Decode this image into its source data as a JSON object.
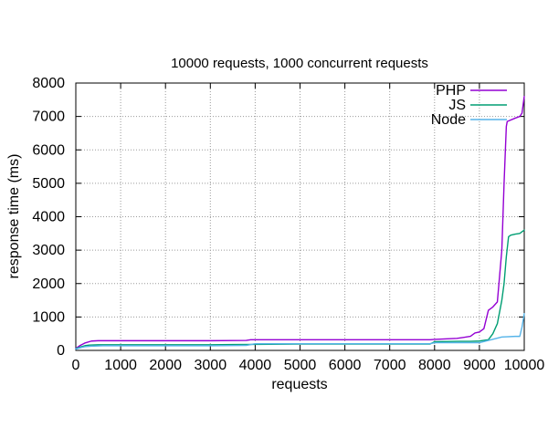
{
  "chart_data": {
    "type": "line",
    "title": "10000 requests, 1000 concurrent requests",
    "xlabel": "requests",
    "ylabel": "response time (ms)",
    "xlim": [
      0,
      10000
    ],
    "ylim": [
      0,
      8000
    ],
    "xticks": [
      0,
      1000,
      2000,
      3000,
      4000,
      5000,
      6000,
      7000,
      8000,
      9000,
      10000
    ],
    "yticks": [
      0,
      1000,
      2000,
      3000,
      4000,
      5000,
      6000,
      7000,
      8000
    ],
    "grid": true,
    "legend_position": "top-right",
    "series": [
      {
        "name": "PHP",
        "color": "#9400d3",
        "x": [
          0,
          100,
          200,
          350,
          500,
          1000,
          2000,
          3000,
          3800,
          3900,
          5000,
          6000,
          7000,
          7900,
          8000,
          8500,
          8800,
          8900,
          9000,
          9100,
          9200,
          9300,
          9400,
          9500,
          9550,
          9600,
          9620,
          9800,
          9900,
          9950,
          10000
        ],
        "y": [
          60,
          150,
          220,
          280,
          290,
          290,
          290,
          290,
          300,
          320,
          320,
          320,
          320,
          320,
          330,
          360,
          420,
          520,
          550,
          650,
          1200,
          1300,
          1450,
          3000,
          5000,
          6700,
          6850,
          6950,
          7000,
          7100,
          7600
        ]
      },
      {
        "name": "JS",
        "color": "#009e73",
        "x": [
          0,
          100,
          200,
          300,
          500,
          1000,
          2000,
          3000,
          4000,
          5000,
          6000,
          7000,
          7900,
          8000,
          8500,
          8800,
          9000,
          9200,
          9300,
          9400,
          9500,
          9550,
          9600,
          9650,
          9700,
          9800,
          9900,
          9950,
          10000
        ],
        "y": [
          50,
          100,
          140,
          160,
          170,
          170,
          170,
          170,
          180,
          190,
          190,
          190,
          190,
          260,
          270,
          270,
          280,
          320,
          500,
          800,
          1500,
          2000,
          2800,
          3400,
          3450,
          3480,
          3500,
          3550,
          3600
        ]
      },
      {
        "name": "Node",
        "color": "#56b4e9",
        "x": [
          0,
          100,
          200,
          400,
          600,
          1000,
          2000,
          3000,
          3800,
          4000,
          5000,
          6000,
          7000,
          7900,
          8000,
          8500,
          9000,
          9500,
          9800,
          9900,
          9950,
          10000
        ],
        "y": [
          40,
          80,
          110,
          130,
          140,
          140,
          140,
          140,
          150,
          200,
          200,
          200,
          200,
          200,
          230,
          230,
          230,
          400,
          420,
          420,
          700,
          1100
        ]
      }
    ]
  }
}
